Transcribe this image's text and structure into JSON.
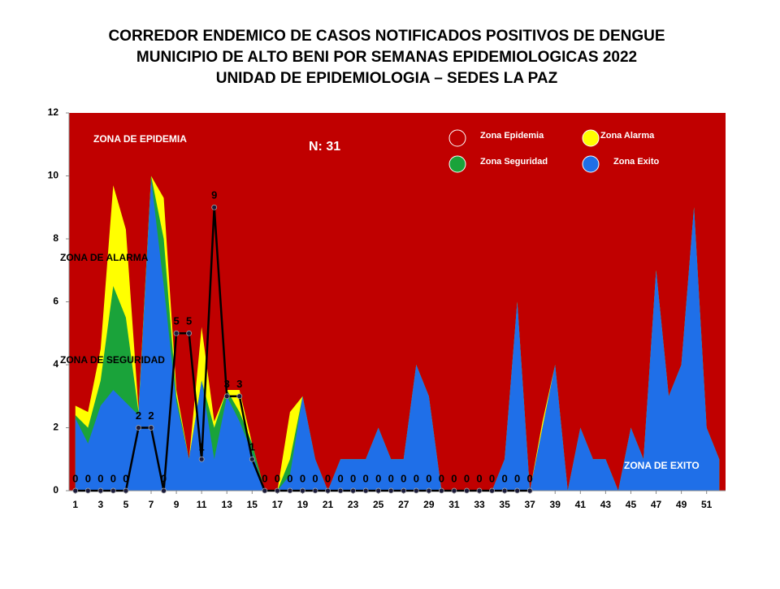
{
  "chart_data": {
    "type": "corridor",
    "title": [
      "CORREDOR ENDEMICO DE CASOS NOTIFICADOS POSITIVOS DE DENGUE",
      "MUNICIPIO DE ALTO BENI POR SEMANAS EPIDEMIOLOGICAS 2022",
      "UNIDAD DE EPIDEMIOLOGIA – SEDES LA PAZ"
    ],
    "annotations": [
      "ZONA DE EPIDEMIA",
      "ZONA DE ALARMA",
      "ZONA DE  SEGURIDAD",
      "ZONA DE  EXITO",
      "N: 31"
    ],
    "x": [
      1,
      2,
      3,
      4,
      5,
      6,
      7,
      8,
      9,
      10,
      11,
      12,
      13,
      14,
      15,
      16,
      17,
      18,
      19,
      20,
      21,
      22,
      23,
      24,
      25,
      26,
      27,
      28,
      29,
      30,
      31,
      32,
      33,
      34,
      35,
      36,
      37,
      38,
      39,
      40,
      41,
      42,
      43,
      44,
      45,
      46,
      47,
      48,
      49,
      50,
      51,
      52
    ],
    "xlim": [
      0.5,
      52.5
    ],
    "xticks": [
      1,
      3,
      5,
      7,
      9,
      11,
      13,
      15,
      17,
      19,
      21,
      23,
      25,
      27,
      29,
      31,
      33,
      35,
      37,
      39,
      41,
      43,
      45,
      47,
      49,
      51
    ],
    "ylim": [
      0,
      12
    ],
    "yticks": [
      0,
      2,
      4,
      6,
      8,
      10,
      12
    ],
    "grid": false,
    "series": [
      {
        "name": "Zona Epidemia",
        "color": "#c00000"
      },
      {
        "name": "Zona Alarma",
        "color": "#ffff00",
        "values": [
          2.7,
          2.5,
          4.5,
          9.7,
          8.3,
          2.6,
          10,
          9.3,
          3.2,
          1,
          5.2,
          2.2,
          3.2,
          3.2,
          1.5,
          0,
          0,
          2.5,
          3,
          1,
          0,
          1,
          1,
          1,
          2,
          1,
          1,
          4,
          3,
          0,
          0,
          0,
          0,
          0,
          1,
          6,
          0,
          2.2,
          4,
          0,
          2,
          1,
          1,
          0,
          2,
          1,
          7,
          3,
          4,
          9,
          2,
          1
        ]
      },
      {
        "name": "Zona Seguridad",
        "color": "#1aa33a",
        "values": [
          2.4,
          2,
          3.5,
          6.5,
          5.5,
          2.5,
          10,
          8,
          3,
          1,
          3.5,
          2,
          3.2,
          2.5,
          1.5,
          0,
          0,
          1,
          3,
          1,
          0,
          1,
          1,
          1,
          2,
          1,
          1,
          4,
          3,
          0,
          0,
          0,
          0,
          0,
          1,
          6,
          0,
          2,
          4,
          0,
          2,
          1,
          1,
          0,
          2,
          1,
          7,
          3,
          4,
          9,
          2,
          1
        ]
      },
      {
        "name": "Zona Exito",
        "color": "#1f6fe8",
        "values": [
          2.3,
          1.5,
          2.7,
          3.2,
          2.8,
          2.4,
          9.9,
          6.5,
          2.8,
          1,
          3.5,
          1,
          3,
          2.2,
          1.2,
          0,
          0,
          0.5,
          3,
          1,
          0,
          1,
          1,
          1,
          2,
          1,
          1,
          4,
          3,
          0,
          0,
          0,
          0,
          0,
          1,
          6,
          0,
          2,
          4,
          0,
          2,
          1,
          1,
          0,
          2,
          1,
          7,
          3,
          4,
          9,
          2,
          1
        ]
      }
    ],
    "cases": {
      "color": "#000000",
      "values": [
        0,
        0,
        0,
        0,
        0,
        2,
        2,
        0,
        5,
        5,
        1,
        9,
        3,
        3,
        1,
        0,
        0,
        0,
        0,
        0,
        0,
        0,
        0,
        0,
        0,
        0,
        0,
        0,
        0,
        0,
        0,
        0,
        0,
        0,
        0,
        0,
        0,
        null,
        null,
        null,
        null,
        null,
        null,
        null,
        null,
        null,
        null,
        null,
        null,
        null,
        null,
        null
      ]
    }
  }
}
